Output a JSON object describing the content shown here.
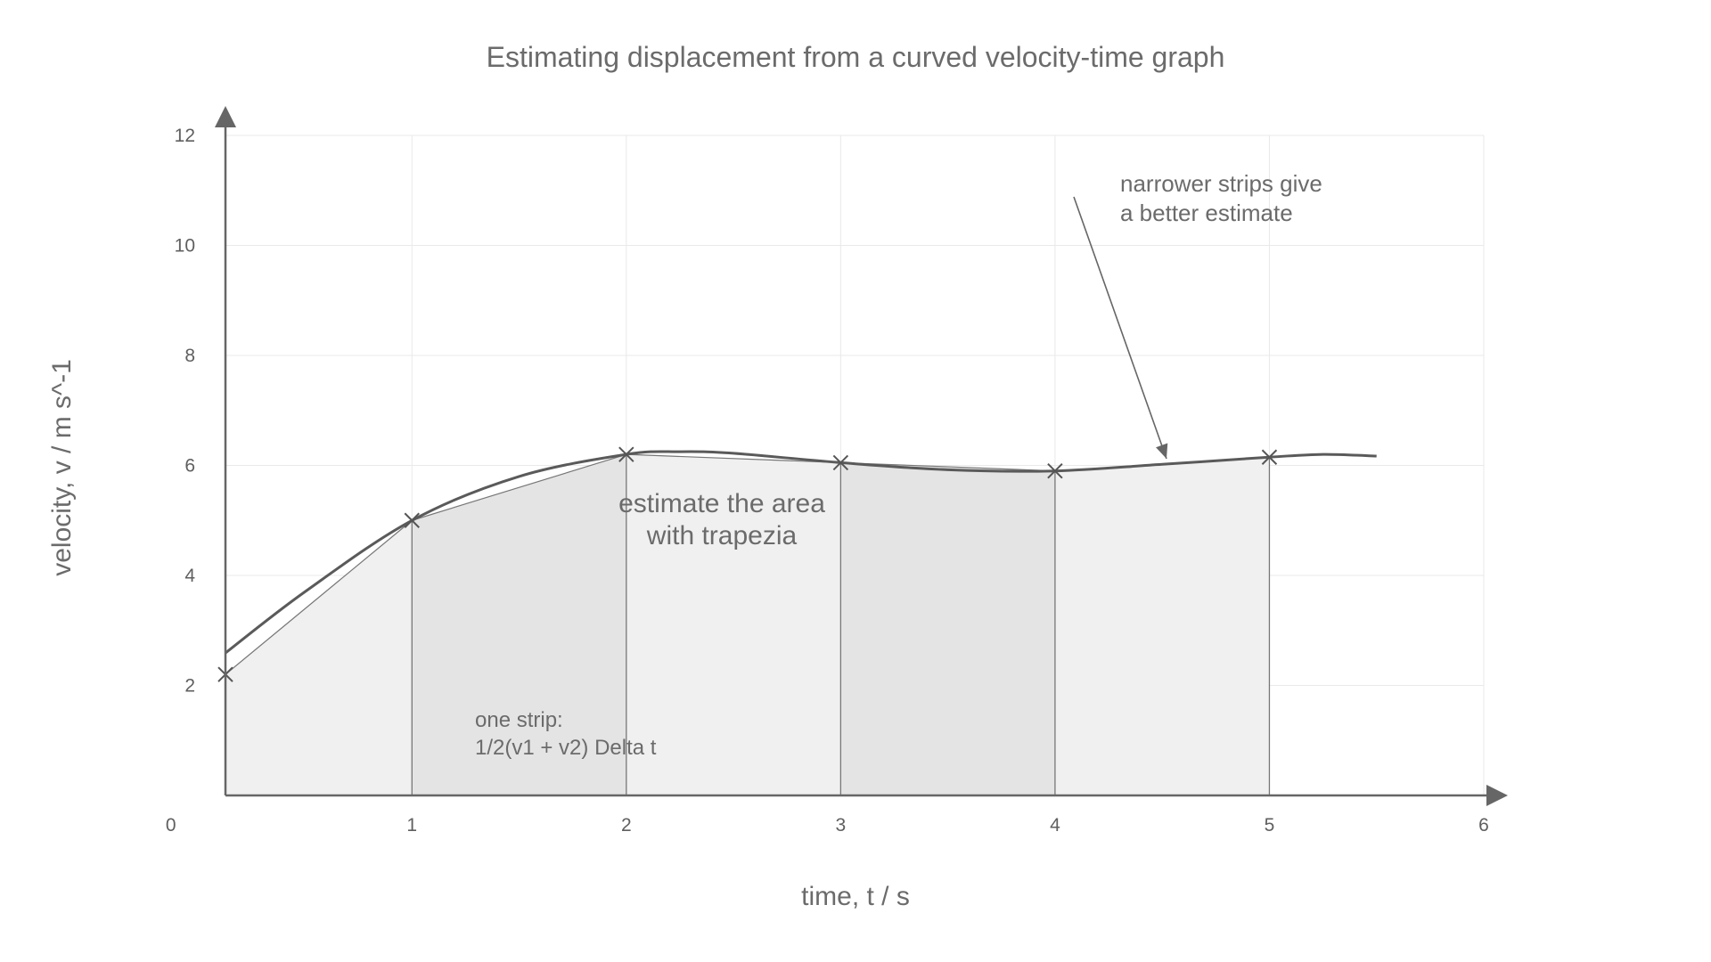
{
  "chart_data": {
    "type": "line",
    "title": "Estimating displacement from a curved velocity-time graph",
    "xlabel": "time, t / s",
    "ylabel": "velocity, v / m s^-1",
    "xlim": [
      0,
      6
    ],
    "ylim": [
      0,
      12
    ],
    "x_ticks": [
      "0",
      "1",
      "2",
      "3",
      "4",
      "5",
      "6"
    ],
    "y_ticks": [
      "2",
      "4",
      "6",
      "8",
      "10",
      "12"
    ],
    "grid": true,
    "series": [
      {
        "curve_x": [
          0,
          0.5,
          1,
          1.5,
          2,
          2.25,
          2.5,
          3,
          3.5,
          4,
          4.5,
          5,
          5.25,
          5.5
        ],
        "curve_y": [
          2.2,
          3.7,
          5.0,
          5.8,
          6.2,
          6.25,
          6.22,
          6.05,
          5.92,
          5.9,
          6.02,
          6.15,
          6.2,
          6.17
        ]
      }
    ],
    "sample_points": {
      "x": [
        0,
        1,
        2,
        3,
        4,
        5
      ],
      "y": [
        2.2,
        5.0,
        6.2,
        6.05,
        5.9,
        6.15
      ]
    },
    "annotations": {
      "center": [
        "estimate the area",
        "with trapezia"
      ],
      "strip": [
        "one strip:",
        "1/2(v1 + v2) Delta t"
      ],
      "narrow": [
        "narrower strips give",
        "a better estimate"
      ]
    },
    "colors": {
      "axis": "#666666",
      "grid": "#e9e9e9",
      "curve": "#5a5a5a",
      "chord": "#777777",
      "fill_light": "#f0f0f0",
      "fill_dark": "#e4e4e4"
    }
  }
}
